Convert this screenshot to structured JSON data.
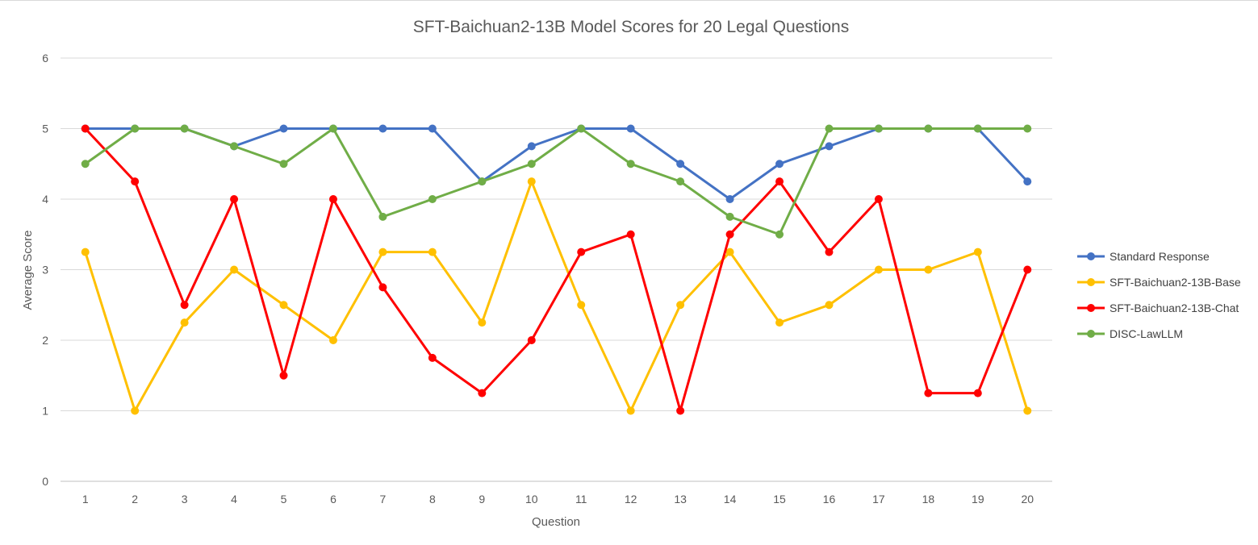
{
  "chart_data": {
    "type": "line",
    "title": "SFT-Baichuan2-13B Model  Scores for 20 Legal Questions",
    "xlabel": "Question",
    "ylabel": "Average Score",
    "categories": [
      "1",
      "2",
      "3",
      "4",
      "5",
      "6",
      "7",
      "8",
      "9",
      "10",
      "11",
      "12",
      "13",
      "14",
      "15",
      "16",
      "17",
      "18",
      "19",
      "20"
    ],
    "yticks": [
      "0",
      "1",
      "2",
      "3",
      "4",
      "5",
      "6"
    ],
    "ylim": [
      0,
      6
    ],
    "grid": true,
    "legend_position": "right",
    "series": [
      {
        "name": "Standard Response",
        "color": "#4472c4",
        "values": [
          5,
          5,
          5,
          4.75,
          5,
          5,
          5,
          5,
          4.25,
          4.75,
          5,
          5,
          4.5,
          4,
          4.5,
          4.75,
          5,
          5,
          5,
          4.25
        ]
      },
      {
        "name": "SFT-Baichuan2-13B-Base",
        "color": "#ffc000",
        "values": [
          3.25,
          1,
          2.25,
          3,
          2.5,
          2,
          3.25,
          3.25,
          2.25,
          4.25,
          2.5,
          1,
          2.5,
          3.25,
          2.25,
          2.5,
          3,
          3,
          3.25,
          1
        ]
      },
      {
        "name": "SFT-Baichuan2-13B-Chat",
        "color": "#ff0000",
        "values": [
          5,
          4.25,
          2.5,
          4,
          1.5,
          4,
          2.75,
          1.75,
          1.25,
          2,
          3.25,
          3.5,
          1,
          3.5,
          4.25,
          3.25,
          4,
          1.25,
          1.25,
          3
        ]
      },
      {
        "name": "DISC-LawLLM",
        "color": "#70ad47",
        "values": [
          4.5,
          5,
          5,
          4.75,
          4.5,
          5,
          3.75,
          4,
          4.25,
          4.5,
          5,
          4.5,
          4.25,
          3.75,
          3.5,
          5,
          5,
          5,
          5,
          5
        ]
      }
    ]
  }
}
